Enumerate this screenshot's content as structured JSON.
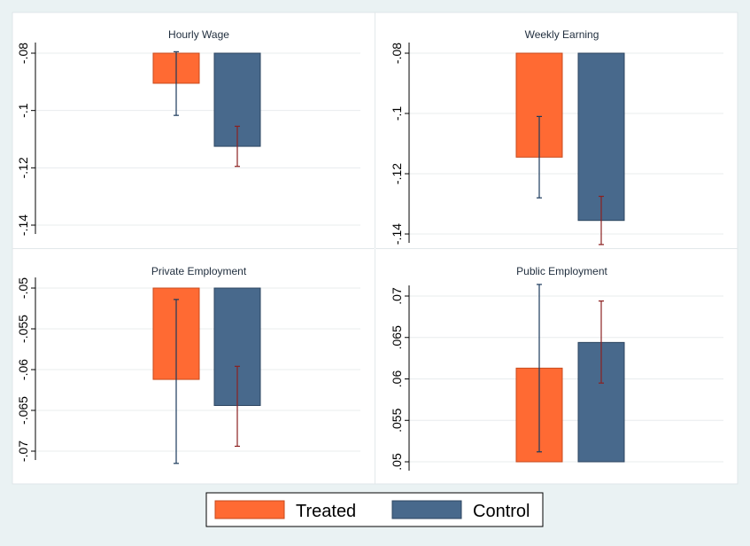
{
  "colors": {
    "treated": "#ff6a33",
    "control": "#48698c",
    "treated_whisker": "#1b3a5c",
    "control_whisker": "#8b2020",
    "grid": "#e8ecee",
    "panel_bg": "#ffffff",
    "outer_bg": "#eaf2f3"
  },
  "legend": {
    "position": "bottom-center",
    "items": [
      {
        "label": "Treated",
        "color": "#ff6a33"
      },
      {
        "label": "Control",
        "color": "#48698c"
      }
    ]
  },
  "chart_data": [
    {
      "type": "bar",
      "title": "Hourly Wage",
      "categories": [
        "Treated",
        "Control"
      ],
      "values": [
        -0.0905,
        -0.1125
      ],
      "error_low": [
        -0.1017,
        -0.1195
      ],
      "error_high": [
        -0.0795,
        -0.1055
      ],
      "ylim": [
        -0.14,
        -0.08
      ],
      "yticks": [
        -0.08,
        -0.1,
        -0.12,
        -0.14
      ],
      "ytick_labels": [
        "-.08",
        "-.1",
        "-.12",
        "-.14"
      ],
      "grid": true
    },
    {
      "type": "bar",
      "title": "Weekly Earning",
      "categories": [
        "Treated",
        "Control"
      ],
      "values": [
        -0.1145,
        -0.1355
      ],
      "error_low": [
        -0.128,
        -0.1435
      ],
      "error_high": [
        -0.101,
        -0.1275
      ],
      "ylim": [
        -0.14,
        -0.08
      ],
      "yticks": [
        -0.08,
        -0.1,
        -0.12,
        -0.14
      ],
      "ytick_labels": [
        "-.08",
        "-.1",
        "-.12",
        "-.14"
      ],
      "grid": true
    },
    {
      "type": "bar",
      "title": "Private Employment",
      "categories": [
        "Treated",
        "Control"
      ],
      "values": [
        -0.0612,
        -0.0644
      ],
      "error_low": [
        -0.0715,
        -0.0694
      ],
      "error_high": [
        -0.0514,
        -0.0596
      ],
      "ylim": [
        -0.07,
        -0.05
      ],
      "yticks": [
        -0.05,
        -0.055,
        -0.06,
        -0.065,
        -0.07
      ],
      "ytick_labels": [
        "-.05",
        "-.055",
        "-.06",
        "-.065",
        "-.07"
      ],
      "grid": true
    },
    {
      "type": "bar",
      "title": "Public Employment",
      "categories": [
        "Treated",
        "Control"
      ],
      "values": [
        0.0613,
        0.0644
      ],
      "error_low": [
        0.0512,
        0.0595
      ],
      "error_high": [
        0.0714,
        0.0694
      ],
      "ylim": [
        0.05,
        0.07
      ],
      "yticks": [
        0.05,
        0.055,
        0.06,
        0.065,
        0.07
      ],
      "ytick_labels": [
        ".05",
        ".055",
        ".06",
        ".065",
        ".07"
      ],
      "grid": true
    }
  ]
}
